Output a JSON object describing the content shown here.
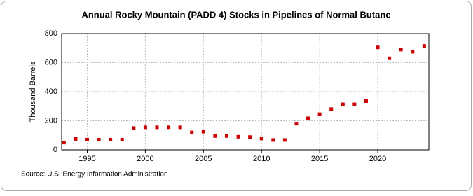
{
  "chart_data": {
    "type": "scatter",
    "title": "Annual Rocky Mountain (PADD 4) Stocks in Pipelines of Normal Butane",
    "y_label": "Thousand Barrels",
    "source": "Source: U.S. Energy Information Administration",
    "x": [
      1993,
      1994,
      1995,
      1996,
      1997,
      1998,
      1999,
      2000,
      2001,
      2002,
      2003,
      2004,
      2005,
      2006,
      2007,
      2008,
      2009,
      2010,
      2011,
      2012,
      2013,
      2014,
      2015,
      2016,
      2017,
      2018,
      2019,
      2020,
      2021,
      2022,
      2023,
      2024
    ],
    "series": [
      {
        "name": "Stocks",
        "color": "#cc0000",
        "values": [
          50,
          75,
          70,
          70,
          70,
          70,
          150,
          155,
          155,
          155,
          155,
          120,
          125,
          95,
          95,
          90,
          88,
          78,
          68,
          68,
          180,
          217,
          245,
          280,
          313,
          313,
          335,
          705,
          630,
          690,
          675,
          715
        ]
      }
    ],
    "xlim": [
      1992.8,
      2024.4
    ],
    "xticks": [
      1995,
      2000,
      2005,
      2010,
      2015,
      2020
    ],
    "ylim": [
      0,
      800
    ],
    "yticks": [
      0,
      200,
      400,
      600,
      800
    ],
    "grid": true
  }
}
